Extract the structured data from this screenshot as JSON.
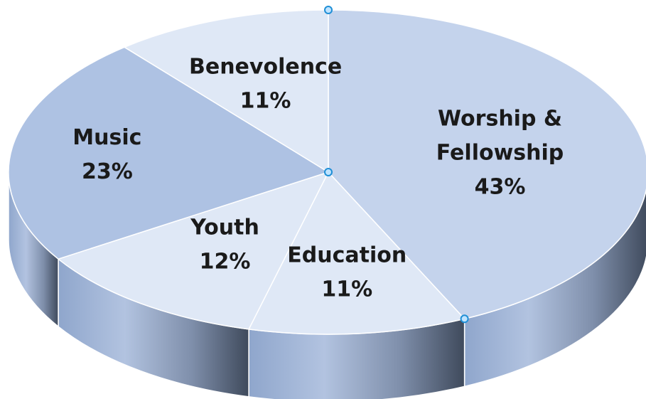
{
  "chart_data": {
    "type": "pie",
    "style": "3d",
    "categories": [
      "Worship & Fellowship",
      "Education",
      "Youth",
      "Music",
      "Benevolence"
    ],
    "values": [
      43,
      11,
      12,
      23,
      11
    ],
    "unit": "%",
    "slice_labels": [
      {
        "lines": [
          "Worship &",
          "Fellowship"
        ],
        "percent": "43%"
      },
      {
        "lines": [
          "Education"
        ],
        "percent": "11%"
      },
      {
        "lines": [
          "Youth"
        ],
        "percent": "12%"
      },
      {
        "lines": [
          "Music"
        ],
        "percent": "23%"
      },
      {
        "lines": [
          "Benevolence"
        ],
        "percent": "11%"
      }
    ],
    "legend": "none",
    "colors": {
      "top_light": "#dfe8f6",
      "top_mid": "#c4d3ec",
      "top_dark": "#aec2e3",
      "side_light": "#9fb4d6",
      "side_dark": "#4f5c72",
      "edge": "#ffffff",
      "handle_fill": "#bfe3ff",
      "handle_stroke": "#1f8fd6"
    }
  }
}
